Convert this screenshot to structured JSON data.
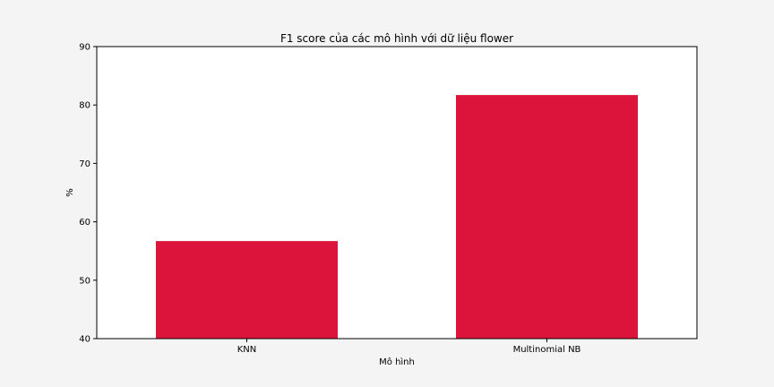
{
  "chart_data": {
    "type": "bar",
    "title": "F1 score của các mô hình với dữ liệu flower",
    "xlabel": "Mô hình",
    "ylabel": "%",
    "categories": [
      "KNN",
      "Multinomial NB"
    ],
    "values": [
      56.7,
      81.7
    ],
    "ylim": [
      40,
      90
    ],
    "yticks": [
      40,
      50,
      60,
      70,
      80,
      90
    ],
    "bar_color": "#dc143c",
    "grid": false,
    "legend": "none"
  }
}
